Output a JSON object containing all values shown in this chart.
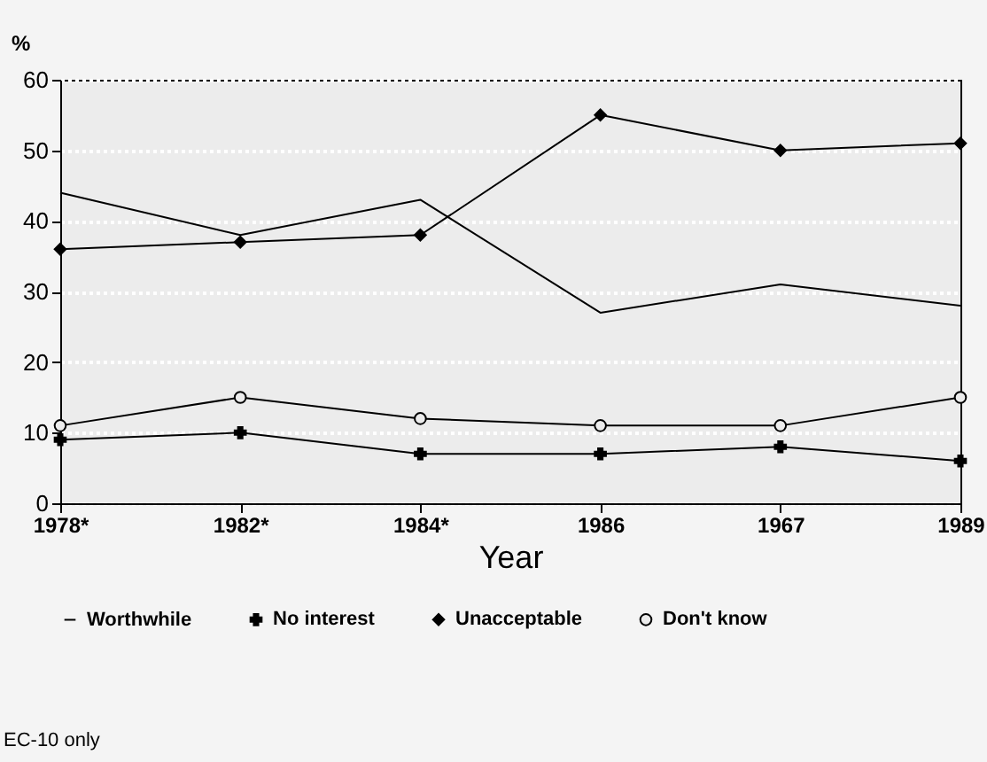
{
  "chart_data": {
    "type": "line",
    "xlabel": "Year",
    "ylabel": "%",
    "categories": [
      "1978*",
      "1982*",
      "1984*",
      "1986",
      "1967",
      "1989"
    ],
    "series": [
      {
        "name": "Worthwhile",
        "color": "#000000",
        "marker": "none",
        "values": [
          44,
          38,
          43,
          27,
          31,
          28
        ]
      },
      {
        "name": "No interest",
        "color": "#000000",
        "marker": "cross",
        "values": [
          9,
          10,
          7,
          7,
          8,
          6
        ]
      },
      {
        "name": "Unacceptable",
        "color": "#000000",
        "marker": "diamond",
        "values": [
          36,
          37,
          38,
          55,
          50,
          51
        ]
      },
      {
        "name": "Don't know",
        "color": "#000000",
        "marker": "circle",
        "values": [
          11,
          15,
          12,
          11,
          11,
          15
        ]
      }
    ],
    "ylim": [
      0,
      60
    ],
    "yticks": [
      0,
      10,
      20,
      30,
      40,
      50,
      60
    ],
    "grid": "y",
    "legend": "bottom",
    "annotations": [
      "EC-10 only"
    ]
  }
}
